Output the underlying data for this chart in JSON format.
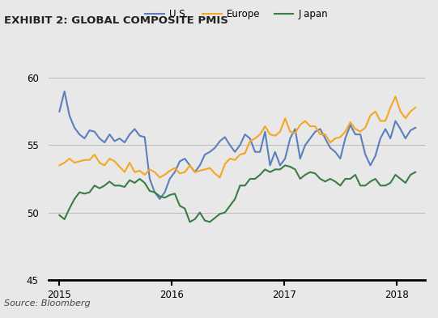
{
  "title": "EXHIBIT 2: GLOBAL COMPOSITE PMIS",
  "source": "Source: Bloomberg",
  "background_color": "#e8e8e8",
  "plot_bg_color": "#e8e8e8",
  "title_bg_color": "#d0d0d0",
  "us_color": "#5b7fbd",
  "europe_color": "#f5a623",
  "japan_color": "#3a7d44",
  "ylim": [
    45,
    62
  ],
  "yticks": [
    45,
    50,
    55,
    60
  ],
  "legend_labels": [
    "U.S.",
    "Europe",
    "J apan"
  ],
  "x_labels": [
    "2015",
    "2016",
    "2017",
    "2018"
  ],
  "us_data": [
    57.5,
    59.0,
    57.2,
    56.3,
    55.8,
    55.5,
    56.1,
    56.0,
    55.5,
    55.2,
    55.8,
    55.3,
    55.5,
    55.2,
    55.8,
    56.2,
    55.7,
    55.6,
    52.5,
    51.5,
    51.0,
    51.5,
    52.5,
    53.0,
    53.8,
    54.0,
    53.5,
    53.0,
    53.5,
    54.3,
    54.5,
    54.8,
    55.3,
    55.6,
    55.0,
    54.5,
    55.0,
    55.8,
    55.5,
    54.5,
    54.5,
    56.0,
    53.5,
    54.5,
    53.5,
    54.0,
    55.5,
    56.2,
    54.0,
    55.0,
    55.5,
    56.0,
    56.2,
    55.5,
    54.8,
    54.5,
    54.0,
    55.5,
    56.5,
    55.8,
    55.8,
    54.3,
    53.5,
    54.2,
    55.5,
    56.2,
    55.5,
    56.8,
    56.2,
    55.5,
    56.1,
    56.3
  ],
  "europe_data": [
    53.5,
    53.7,
    54.0,
    53.7,
    53.8,
    53.9,
    53.9,
    54.3,
    53.7,
    53.5,
    54.0,
    53.8,
    53.4,
    53.0,
    53.7,
    53.0,
    53.1,
    52.8,
    53.2,
    53.0,
    52.6,
    52.8,
    53.1,
    53.3,
    52.9,
    53.0,
    53.5,
    53.0,
    53.1,
    53.2,
    53.3,
    52.9,
    52.6,
    53.6,
    54.0,
    53.9,
    54.3,
    54.4,
    55.3,
    55.5,
    55.8,
    56.4,
    55.8,
    55.7,
    56.0,
    57.0,
    56.0,
    55.9,
    56.5,
    56.8,
    56.4,
    56.4,
    55.8,
    55.8,
    55.2,
    55.5,
    55.6,
    56.0,
    56.7,
    56.2,
    56.0,
    56.3,
    57.2,
    57.5,
    56.8,
    56.8,
    57.8,
    58.6,
    57.5,
    57.0,
    57.5,
    57.8
  ],
  "japan_data": [
    49.8,
    49.5,
    50.3,
    51.0,
    51.5,
    51.4,
    51.5,
    52.0,
    51.8,
    52.0,
    52.3,
    52.0,
    52.0,
    51.9,
    52.4,
    52.2,
    52.5,
    52.2,
    51.6,
    51.5,
    51.2,
    51.1,
    51.3,
    51.4,
    50.5,
    50.3,
    49.3,
    49.5,
    50.0,
    49.4,
    49.3,
    49.6,
    49.9,
    50.0,
    50.5,
    51.0,
    52.0,
    52.0,
    52.5,
    52.5,
    52.8,
    53.2,
    53.0,
    53.2,
    53.2,
    53.5,
    53.4,
    53.2,
    52.5,
    52.8,
    53.0,
    52.9,
    52.5,
    52.3,
    52.5,
    52.3,
    52.0,
    52.5,
    52.5,
    52.8,
    52.0,
    52.0,
    52.3,
    52.5,
    52.0,
    52.0,
    52.2,
    52.8,
    52.5,
    52.2,
    52.8,
    53.0
  ]
}
